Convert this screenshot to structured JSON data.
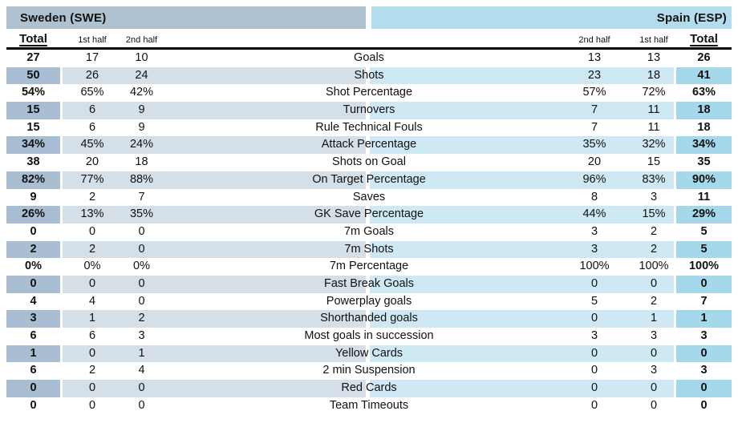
{
  "teams": {
    "left": {
      "name": "Sweden (SWE)"
    },
    "right": {
      "name": "Spain (ESP)"
    }
  },
  "columns": {
    "swe": {
      "total": "Total",
      "first_half": "1st half",
      "second_half": "2nd half"
    },
    "esp": {
      "second_half": "2nd half",
      "first_half": "1st half",
      "total": "Total"
    }
  },
  "colors": {
    "left_header": "#aec2d1",
    "right_header": "#b3dcec",
    "left_shade": "#d5dfe7",
    "left_total_shade": "#a9bed2",
    "right_shade": "#cfe9f4",
    "right_total_shade": "#a6d8eb"
  },
  "rows": [
    {
      "label": "Goals",
      "swe": {
        "total": "27",
        "h1": "17",
        "h2": "10"
      },
      "esp": {
        "h2": "13",
        "h1": "13",
        "total": "26"
      }
    },
    {
      "label": "Shots",
      "swe": {
        "total": "50",
        "h1": "26",
        "h2": "24"
      },
      "esp": {
        "h2": "23",
        "h1": "18",
        "total": "41"
      }
    },
    {
      "label": "Shot Percentage",
      "swe": {
        "total": "54%",
        "h1": "65%",
        "h2": "42%"
      },
      "esp": {
        "h2": "57%",
        "h1": "72%",
        "total": "63%"
      }
    },
    {
      "label": "Turnovers",
      "swe": {
        "total": "15",
        "h1": "6",
        "h2": "9"
      },
      "esp": {
        "h2": "7",
        "h1": "11",
        "total": "18"
      }
    },
    {
      "label": "Rule Technical Fouls",
      "swe": {
        "total": "15",
        "h1": "6",
        "h2": "9"
      },
      "esp": {
        "h2": "7",
        "h1": "11",
        "total": "18"
      }
    },
    {
      "label": "Attack Percentage",
      "swe": {
        "total": "34%",
        "h1": "45%",
        "h2": "24%"
      },
      "esp": {
        "h2": "35%",
        "h1": "32%",
        "total": "34%"
      }
    },
    {
      "label": "Shots on Goal",
      "swe": {
        "total": "38",
        "h1": "20",
        "h2": "18"
      },
      "esp": {
        "h2": "20",
        "h1": "15",
        "total": "35"
      }
    },
    {
      "label": "On Target Percentage",
      "swe": {
        "total": "82%",
        "h1": "77%",
        "h2": "88%"
      },
      "esp": {
        "h2": "96%",
        "h1": "83%",
        "total": "90%"
      }
    },
    {
      "label": "Saves",
      "swe": {
        "total": "9",
        "h1": "2",
        "h2": "7"
      },
      "esp": {
        "h2": "8",
        "h1": "3",
        "total": "11"
      }
    },
    {
      "label": "GK Save Percentage",
      "swe": {
        "total": "26%",
        "h1": "13%",
        "h2": "35%"
      },
      "esp": {
        "h2": "44%",
        "h1": "15%",
        "total": "29%"
      }
    },
    {
      "label": "7m Goals",
      "swe": {
        "total": "0",
        "h1": "0",
        "h2": "0"
      },
      "esp": {
        "h2": "3",
        "h1": "2",
        "total": "5"
      }
    },
    {
      "label": "7m Shots",
      "swe": {
        "total": "2",
        "h1": "2",
        "h2": "0"
      },
      "esp": {
        "h2": "3",
        "h1": "2",
        "total": "5"
      }
    },
    {
      "label": "7m Percentage",
      "swe": {
        "total": "0%",
        "h1": "0%",
        "h2": "0%"
      },
      "esp": {
        "h2": "100%",
        "h1": "100%",
        "total": "100%"
      }
    },
    {
      "label": "Fast Break Goals",
      "swe": {
        "total": "0",
        "h1": "0",
        "h2": "0"
      },
      "esp": {
        "h2": "0",
        "h1": "0",
        "total": "0"
      }
    },
    {
      "label": "Powerplay goals",
      "swe": {
        "total": "4",
        "h1": "4",
        "h2": "0"
      },
      "esp": {
        "h2": "5",
        "h1": "2",
        "total": "7"
      }
    },
    {
      "label": "Shorthanded goals",
      "swe": {
        "total": "3",
        "h1": "1",
        "h2": "2"
      },
      "esp": {
        "h2": "0",
        "h1": "1",
        "total": "1"
      }
    },
    {
      "label": "Most goals in succession",
      "swe": {
        "total": "6",
        "h1": "6",
        "h2": "3"
      },
      "esp": {
        "h2": "3",
        "h1": "3",
        "total": "3"
      }
    },
    {
      "label": "Yellow Cards",
      "swe": {
        "total": "1",
        "h1": "0",
        "h2": "1"
      },
      "esp": {
        "h2": "0",
        "h1": "0",
        "total": "0"
      }
    },
    {
      "label": "2 min Suspension",
      "swe": {
        "total": "6",
        "h1": "2",
        "h2": "4"
      },
      "esp": {
        "h2": "0",
        "h1": "3",
        "total": "3"
      }
    },
    {
      "label": "Red Cards",
      "swe": {
        "total": "0",
        "h1": "0",
        "h2": "0"
      },
      "esp": {
        "h2": "0",
        "h1": "0",
        "total": "0"
      }
    },
    {
      "label": "Team Timeouts",
      "swe": {
        "total": "0",
        "h1": "0",
        "h2": "0"
      },
      "esp": {
        "h2": "0",
        "h1": "0",
        "total": "0"
      }
    }
  ]
}
